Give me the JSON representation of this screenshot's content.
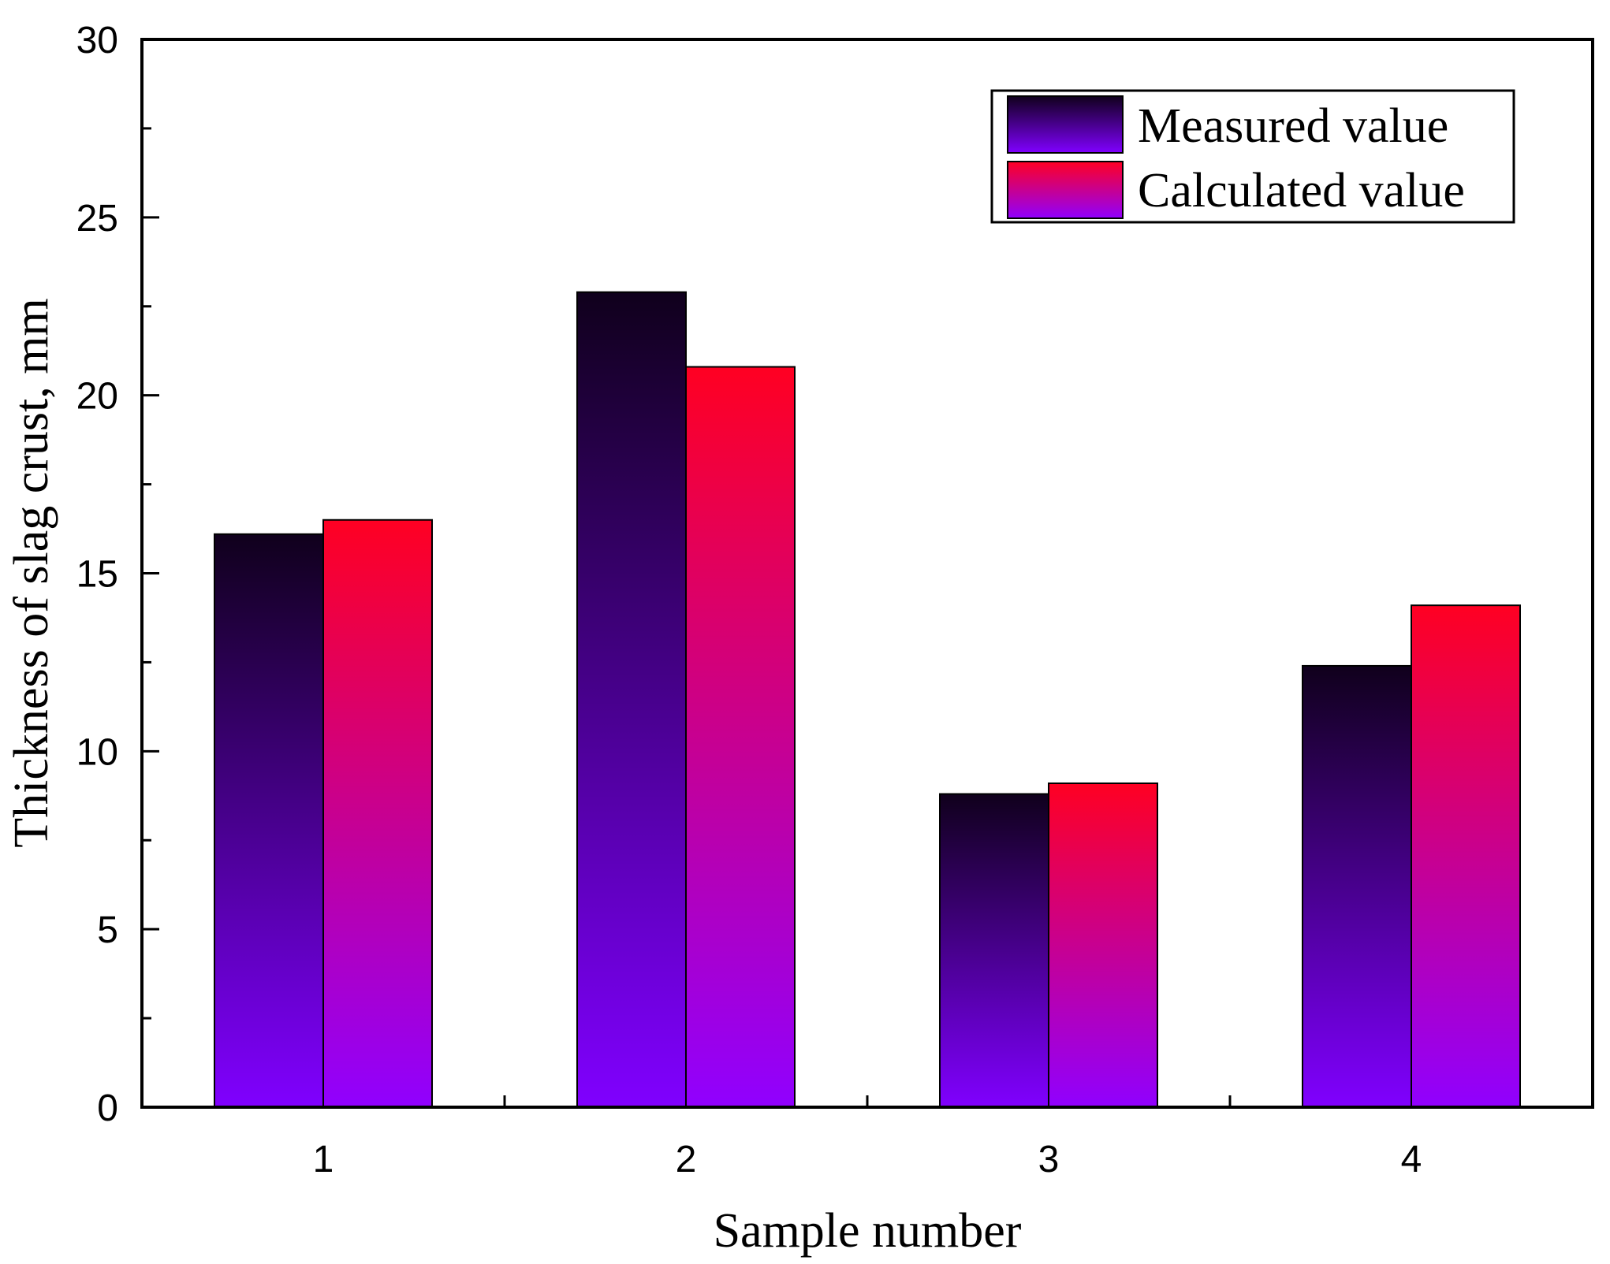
{
  "chart_data": {
    "type": "bar",
    "title": "",
    "xlabel": "Sample number",
    "ylabel": "Thickness of slag crust, mm",
    "categories": [
      "1",
      "2",
      "3",
      "4"
    ],
    "ylim": [
      0,
      30
    ],
    "yticks": [
      0,
      5,
      10,
      15,
      20,
      25,
      30
    ],
    "ytick_labels": [
      "0",
      "5",
      "10",
      "15",
      "20",
      "25",
      "30"
    ],
    "grid": false,
    "legend_position": "top-right",
    "series": [
      {
        "name": "Measured value",
        "values": [
          16.1,
          22.9,
          8.8,
          12.4
        ],
        "gradient": {
          "top": "#10001c",
          "bottom": "#8000ff"
        }
      },
      {
        "name": "Calculated value",
        "values": [
          16.5,
          20.8,
          9.1,
          14.1
        ],
        "gradient": {
          "top": "#ff0022",
          "bottom": "#9000ff"
        }
      }
    ]
  }
}
